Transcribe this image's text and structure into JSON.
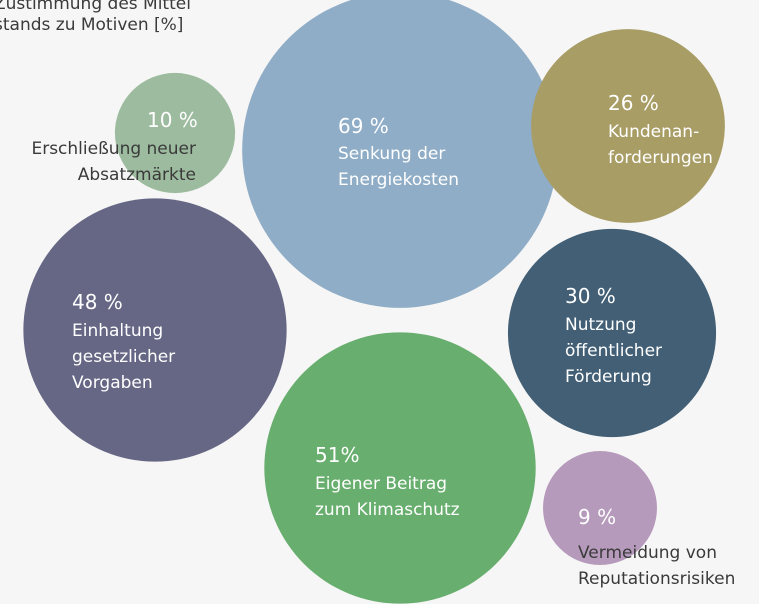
{
  "chart_data": {
    "type": "bubble",
    "title": [
      "Zustimmung des Mittel",
      "stands zu Motiven [%]"
    ],
    "categories": [
      [
        "Senkung der",
        "Energiekosten"
      ],
      [
        "Erschließung neuer",
        "Absatzmärkte"
      ],
      [
        "Kundenan-",
        "forderungen"
      ],
      [
        "Einhaltung",
        "gesetzlicher",
        "Vorgaben"
      ],
      [
        "Nutzung",
        "öffentlicher",
        "Förderung"
      ],
      [
        "Eigener Beitrag",
        "zum Klimaschutz"
      ],
      [
        "Vermeidung von",
        "Reputationsrisiken"
      ]
    ],
    "values": [
      69,
      10,
      26,
      48,
      30,
      51,
      9
    ],
    "value_labels": [
      "69 %",
      "10 %",
      "26 %",
      "48 %",
      "30 %",
      "51%",
      "9 %"
    ],
    "colors": [
      "#8fadc6",
      "#9dbc9f",
      "#a99d66",
      "#666785",
      "#425f75",
      "#68ae6e",
      "#b69abb"
    ]
  }
}
